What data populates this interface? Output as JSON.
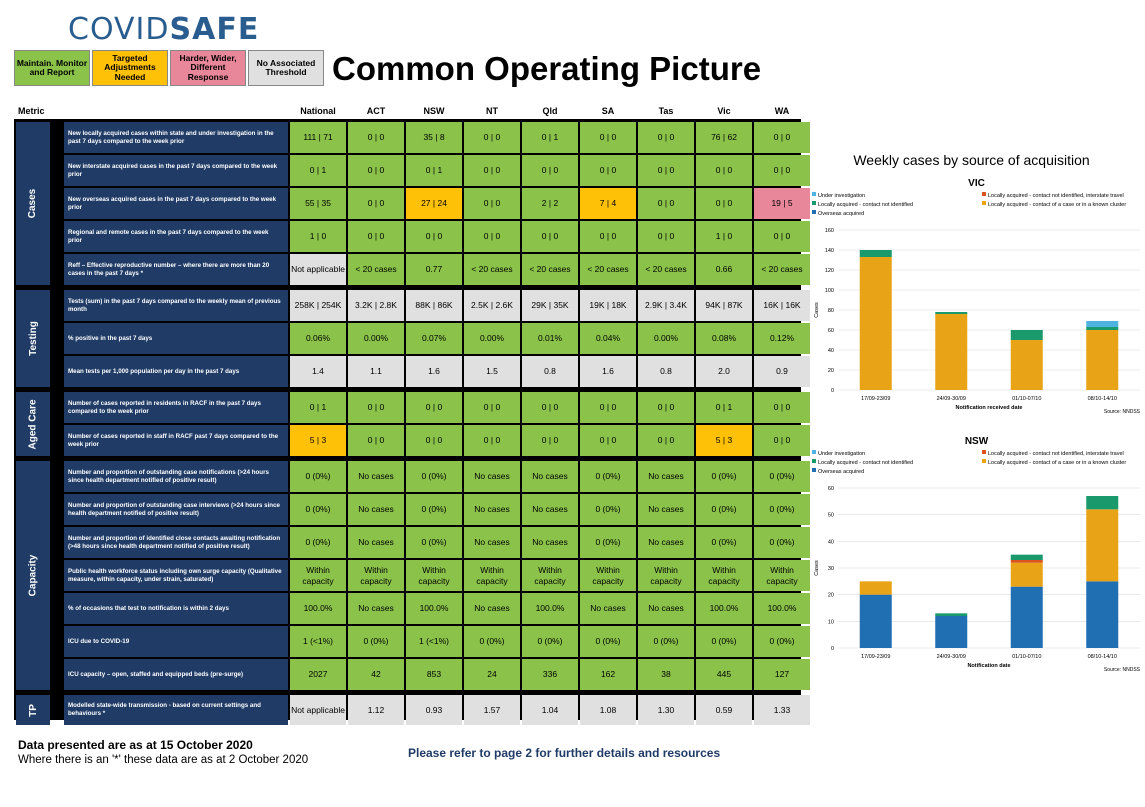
{
  "logo": {
    "part1": "COVID",
    "part2": "SAFE"
  },
  "legend": [
    {
      "label": "Maintain. Monitor and Report",
      "color": "#8bc34a"
    },
    {
      "label": "Targeted Adjustments Needed",
      "color": "#ffc107"
    },
    {
      "label": "Harder, Wider, Different Response",
      "color": "#e8879a"
    },
    {
      "label": "No Associated Threshold",
      "color": "#e0e0e0"
    }
  ],
  "title": "Common Operating Picture",
  "table": {
    "metric_header": "Metric",
    "columns": [
      "National",
      "ACT",
      "NSW",
      "NT",
      "Qld",
      "SA",
      "Tas",
      "Vic",
      "WA"
    ],
    "groups": [
      {
        "label": "Cases",
        "rows": [
          {
            "metric": "New locally acquired cases within state and under investigation in the past 7 days compared to the week prior",
            "values": [
              "111 | 71",
              "0 | 0",
              "35 | 8",
              "0 | 0",
              "0 | 1",
              "0 | 0",
              "0 | 0",
              "76 | 62",
              "0 | 0"
            ],
            "status": [
              "g",
              "g",
              "g",
              "g",
              "g",
              "g",
              "g",
              "g",
              "g"
            ]
          },
          {
            "metric": "New interstate acquired cases in the past 7 days compared to the week prior",
            "values": [
              "0 | 1",
              "0 | 0",
              "0 | 1",
              "0 | 0",
              "0 | 0",
              "0 | 0",
              "0 | 0",
              "0 | 0",
              "0 | 0"
            ],
            "status": [
              "g",
              "g",
              "g",
              "g",
              "g",
              "g",
              "g",
              "g",
              "g"
            ]
          },
          {
            "metric": "New overseas acquired cases in the past 7 days compared to the week prior",
            "values": [
              "55 | 35",
              "0 | 0",
              "27 | 24",
              "0 | 0",
              "2 | 2",
              "7 | 4",
              "0 | 0",
              "0 | 0",
              "19 | 5"
            ],
            "status": [
              "g",
              "g",
              "y",
              "g",
              "g",
              "y",
              "g",
              "g",
              "r"
            ]
          },
          {
            "metric": "Regional and remote cases in the past 7 days compared to the week prior",
            "values": [
              "1 | 0",
              "0 | 0",
              "0 | 0",
              "0 | 0",
              "0 | 0",
              "0 | 0",
              "0 | 0",
              "1 | 0",
              "0 | 0"
            ],
            "status": [
              "g",
              "g",
              "g",
              "g",
              "g",
              "g",
              "g",
              "g",
              "g"
            ]
          },
          {
            "metric": "Reff – Effective reproductive number – where there are more than 20 cases in the past 7 days *",
            "values": [
              "Not applicable",
              "< 20 cases",
              "0.77",
              "< 20 cases",
              "< 20 cases",
              "< 20 cases",
              "< 20 cases",
              "0.66",
              "< 20 cases"
            ],
            "status": [
              "n",
              "g",
              "g",
              "g",
              "g",
              "g",
              "g",
              "g",
              "g"
            ]
          }
        ]
      },
      {
        "label": "Testing",
        "rows": [
          {
            "metric": "Tests (sum) in the past 7 days compared to the weekly mean of previous month",
            "values": [
              "258K | 254K",
              "3.2K | 2.8K",
              "88K | 86K",
              "2.5K | 2.6K",
              "29K | 35K",
              "19K | 18K",
              "2.9K | 3.4K",
              "94K | 87K",
              "16K | 16K"
            ],
            "status": [
              "n",
              "n",
              "n",
              "n",
              "n",
              "n",
              "n",
              "n",
              "n"
            ]
          },
          {
            "metric": "% positive in the past 7 days",
            "values": [
              "0.06%",
              "0.00%",
              "0.07%",
              "0.00%",
              "0.01%",
              "0.04%",
              "0.00%",
              "0.08%",
              "0.12%"
            ],
            "status": [
              "g",
              "g",
              "g",
              "g",
              "g",
              "g",
              "g",
              "g",
              "g"
            ]
          },
          {
            "metric": "Mean tests per 1,000 population per day in the past 7 days",
            "values": [
              "1.4",
              "1.1",
              "1.6",
              "1.5",
              "0.8",
              "1.6",
              "0.8",
              "2.0",
              "0.9"
            ],
            "status": [
              "n",
              "n",
              "n",
              "n",
              "n",
              "n",
              "n",
              "n",
              "n"
            ]
          }
        ]
      },
      {
        "label": "Aged Care",
        "rows": [
          {
            "metric": "Number of cases reported in residents in RACF in the past 7 days compared to the week prior",
            "values": [
              "0 | 1",
              "0 | 0",
              "0 | 0",
              "0 | 0",
              "0 | 0",
              "0 | 0",
              "0 | 0",
              "0 | 1",
              "0 | 0"
            ],
            "status": [
              "g",
              "g",
              "g",
              "g",
              "g",
              "g",
              "g",
              "g",
              "g"
            ]
          },
          {
            "metric": "Number of cases reported in staff in RACF past 7 days compared to the week prior",
            "values": [
              "5 | 3",
              "0 | 0",
              "0 | 0",
              "0 | 0",
              "0 | 0",
              "0 | 0",
              "0 | 0",
              "5 | 3",
              "0 | 0"
            ],
            "status": [
              "y",
              "g",
              "g",
              "g",
              "g",
              "g",
              "g",
              "y",
              "g"
            ]
          }
        ]
      },
      {
        "label": "Capacity",
        "rows": [
          {
            "metric": "Number and proportion of outstanding case notifications (>24 hours since health department notified of positive result)",
            "values": [
              "0 (0%)",
              "No cases",
              "0 (0%)",
              "No cases",
              "No cases",
              "0 (0%)",
              "No cases",
              "0 (0%)",
              "0 (0%)"
            ],
            "status": [
              "g",
              "g",
              "g",
              "g",
              "g",
              "g",
              "g",
              "g",
              "g"
            ]
          },
          {
            "metric": "Number and proportion of outstanding case interviews (>24 hours since health department notified of positive result)",
            "values": [
              "0 (0%)",
              "No cases",
              "0 (0%)",
              "No cases",
              "No cases",
              "0 (0%)",
              "No cases",
              "0 (0%)",
              "0 (0%)"
            ],
            "status": [
              "g",
              "g",
              "g",
              "g",
              "g",
              "g",
              "g",
              "g",
              "g"
            ]
          },
          {
            "metric": "Number and proportion of identified close contacts awaiting notification (>48 hours since health department notified of positive result)",
            "values": [
              "0 (0%)",
              "No cases",
              "0 (0%)",
              "No cases",
              "No cases",
              "0 (0%)",
              "No cases",
              "0 (0%)",
              "0 (0%)"
            ],
            "status": [
              "g",
              "g",
              "g",
              "g",
              "g",
              "g",
              "g",
              "g",
              "g"
            ]
          },
          {
            "metric": "Public health workforce status including own surge capacity (Qualitative measure, within capacity, under strain, saturated)",
            "values": [
              "Within capacity",
              "Within capacity",
              "Within capacity",
              "Within capacity",
              "Within capacity",
              "Within capacity",
              "Within capacity",
              "Within capacity",
              "Within capacity"
            ],
            "status": [
              "g",
              "g",
              "g",
              "g",
              "g",
              "g",
              "g",
              "g",
              "g"
            ]
          },
          {
            "metric": "% of occasions that test to notification is within 2 days",
            "values": [
              "100.0%",
              "No cases",
              "100.0%",
              "No cases",
              "100.0%",
              "No cases",
              "No cases",
              "100.0%",
              "100.0%"
            ],
            "status": [
              "g",
              "g",
              "g",
              "g",
              "g",
              "g",
              "g",
              "g",
              "g"
            ]
          },
          {
            "metric": "ICU due to COVID-19",
            "values": [
              "1 (<1%)",
              "0 (0%)",
              "1 (<1%)",
              "0 (0%)",
              "0 (0%)",
              "0 (0%)",
              "0 (0%)",
              "0 (0%)",
              "0 (0%)"
            ],
            "status": [
              "g",
              "g",
              "g",
              "g",
              "g",
              "g",
              "g",
              "g",
              "g"
            ]
          },
          {
            "metric": "ICU capacity – open, staffed and equipped beds (pre-surge)",
            "values": [
              "2027",
              "42",
              "853",
              "24",
              "336",
              "162",
              "38",
              "445",
              "127"
            ],
            "status": [
              "g",
              "g",
              "g",
              "g",
              "g",
              "g",
              "g",
              "g",
              "g"
            ]
          }
        ]
      },
      {
        "label": "TP",
        "rows": [
          {
            "metric": "Modelled state-wide transmission - based on current settings and behaviours *",
            "values": [
              "Not applicable",
              "1.12",
              "0.93",
              "1.57",
              "1.04",
              "1.08",
              "1.30",
              "0.59",
              "1.33"
            ],
            "status": [
              "n",
              "n",
              "n",
              "n",
              "n",
              "n",
              "n",
              "n",
              "n"
            ]
          }
        ]
      }
    ]
  },
  "footer": {
    "date_line": "Data presented are as at 15 October 2020",
    "note_line": "Where there is an '*' these data are as at 2 October 2020",
    "refer": "Please refer to page 2 for further details and resources"
  },
  "colors": {
    "green": "#8bc34a",
    "yellow": "#ffc107",
    "red": "#e8879a",
    "grey": "#e0e0e0",
    "navy": "#1f3b66"
  },
  "charts_title": "Weekly cases by source of acquisition",
  "chart_data": [
    {
      "type": "bar",
      "title": "VIC",
      "xlabel": "Notification received date",
      "ylabel": "Cases",
      "source": "Source: NNDSS",
      "ylim": [
        0,
        160
      ],
      "yticks": [
        0,
        20,
        40,
        60,
        80,
        100,
        120,
        140,
        160
      ],
      "categories": [
        "17/09-23/09",
        "24/09-30/09",
        "01/10-07/10",
        "08/10-14/10"
      ],
      "series": [
        {
          "name": "Under investigation",
          "color": "#4eb3e0",
          "values": [
            0,
            0,
            0,
            6
          ]
        },
        {
          "name": "Locally acquired - contact not identified",
          "color": "#1a9a6c",
          "values": [
            7,
            2,
            10,
            3
          ]
        },
        {
          "name": "Overseas acquired",
          "color": "#1f6fb2",
          "values": [
            0,
            0,
            0,
            0
          ]
        },
        {
          "name": "Locally acquired - contact not identified, interstate travel",
          "color": "#d9541e",
          "values": [
            0,
            0,
            0,
            0
          ]
        },
        {
          "name": "Locally acquired - contact of a case or in a known cluster",
          "color": "#e8a317",
          "values": [
            133,
            76,
            50,
            60
          ]
        }
      ],
      "stack_order": [
        2,
        4,
        3,
        1,
        0
      ]
    },
    {
      "type": "bar",
      "title": "NSW",
      "xlabel": "Notification date",
      "ylabel": "Cases",
      "source": "Source: NNDSS",
      "ylim": [
        0,
        60
      ],
      "yticks": [
        0,
        10,
        20,
        30,
        40,
        50,
        60
      ],
      "categories": [
        "17/09-23/09",
        "24/09-30/09",
        "01/10-07/10",
        "08/10-14/10"
      ],
      "series": [
        {
          "name": "Under investigation",
          "color": "#4eb3e0",
          "values": [
            0,
            0,
            0,
            0
          ]
        },
        {
          "name": "Locally acquired - contact not identified",
          "color": "#1a9a6c",
          "values": [
            0,
            1,
            2,
            5
          ]
        },
        {
          "name": "Overseas acquired",
          "color": "#1f6fb2",
          "values": [
            20,
            12,
            23,
            25
          ]
        },
        {
          "name": "Locally acquired - contact not identified, interstate travel",
          "color": "#d9541e",
          "values": [
            0,
            0,
            1,
            0
          ]
        },
        {
          "name": "Locally acquired - contact of a case or in a known cluster",
          "color": "#e8a317",
          "values": [
            5,
            0,
            9,
            27
          ]
        }
      ],
      "stack_order": [
        2,
        4,
        3,
        1,
        0
      ]
    }
  ]
}
